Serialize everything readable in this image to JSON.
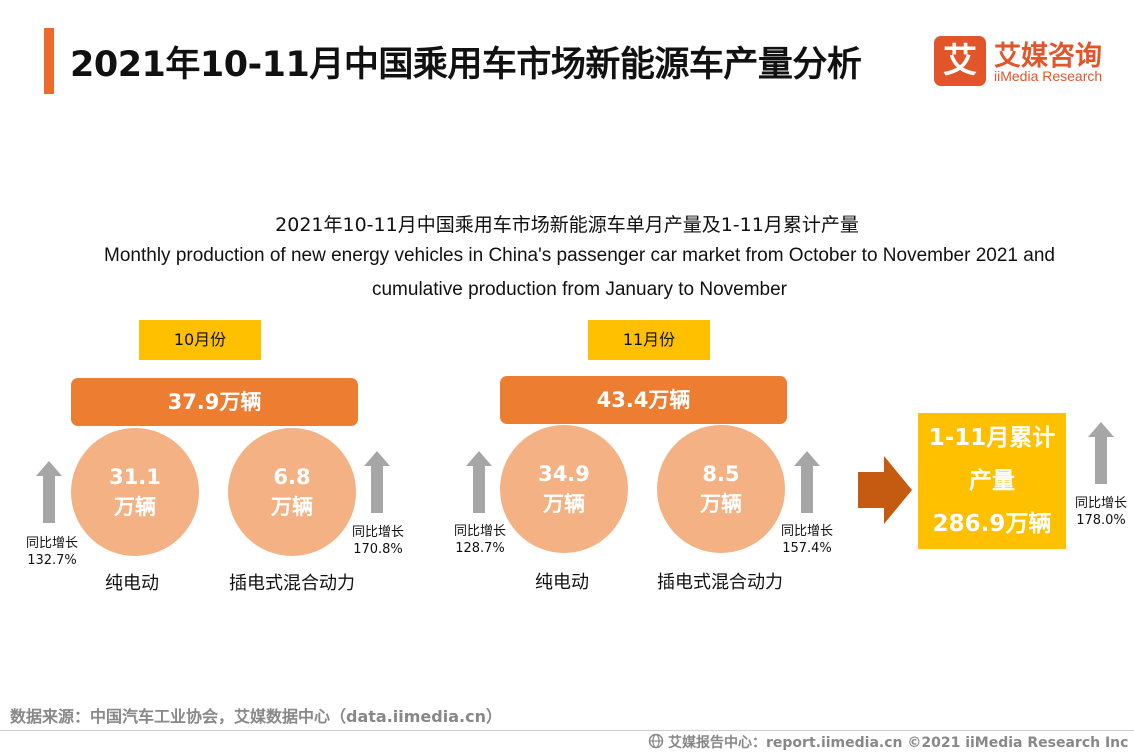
{
  "header": {
    "title": "2021年10-11月中国乘用车市场新能源车产量分析",
    "logo_mark": "艾",
    "logo_cn": "艾媒咨询",
    "logo_en": "iiMedia Research"
  },
  "chart_data": {
    "type": "infographic",
    "title_cn": "2021年10-11月中国乘用车市场新能源车单月产量及1-11月累计产量",
    "title_en_1": "Monthly production of new energy vehicles in China's passenger car market from October to November 2021 and",
    "title_en_2": "cumulative production from January to November",
    "months": [
      {
        "month": "10月份",
        "total": "37.9万辆",
        "segments": [
          {
            "name": "纯电动",
            "value_num": "31.1",
            "value_unit": "万辆",
            "growth_label": "同比增长",
            "growth": "132.7%"
          },
          {
            "name": "插电式混合动力",
            "value_num": "6.8",
            "value_unit": "万辆",
            "growth_label": "同比增长",
            "growth": "170.8%"
          }
        ]
      },
      {
        "month": "11月份",
        "total": "43.4万辆",
        "segments": [
          {
            "name": "纯电动",
            "value_num": "34.9",
            "value_unit": "万辆",
            "growth_label": "同比增长",
            "growth": "128.7%"
          },
          {
            "name": "插电式混合动力",
            "value_num": "8.5",
            "value_unit": "万辆",
            "growth_label": "同比增长",
            "growth": "157.4%"
          }
        ]
      }
    ],
    "cumulative": {
      "label_1": "1-11月累计",
      "label_2": "产量",
      "value": "286.9万辆",
      "growth_label": "同比增长",
      "growth": "178.0%"
    },
    "colors": {
      "month_tag": "#ffc000",
      "total_bar": "#ed7d31",
      "circle": "#f4b183",
      "growth_arrow": "#a6a6a6",
      "transition_arrow": "#c55a11",
      "cumulative_box": "#ffc000"
    }
  },
  "footer": {
    "source": "数据来源：中国汽车工业协会，艾媒数据中心（data.iimedia.cn）",
    "report_icon": "globe-icon",
    "report": "艾媒报告中心：report.iimedia.cn  ©2021  iiMedia Research  Inc"
  }
}
